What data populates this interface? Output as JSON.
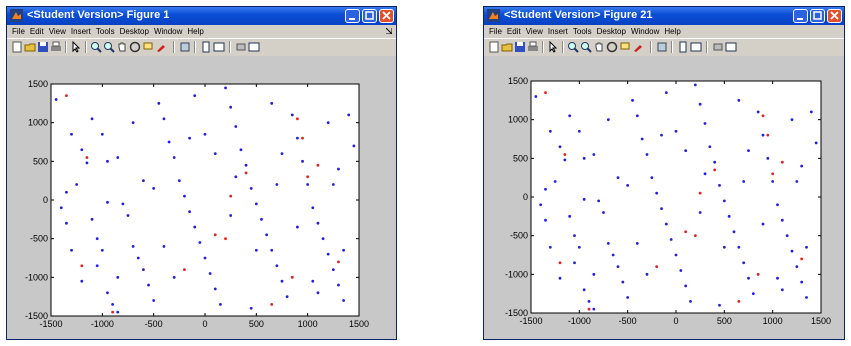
{
  "windows": [
    {
      "title": "<Student Version> Figure 1",
      "menu": [
        "File",
        "Edit",
        "View",
        "Insert",
        "Tools",
        "Desktop",
        "Window",
        "Help"
      ],
      "xticks": [
        -1500,
        -1000,
        -500,
        0,
        500,
        1000,
        1500
      ],
      "yticks": [
        -1500,
        -1000,
        -500,
        0,
        500,
        1000,
        1500
      ],
      "colors": {
        "blue": "#1f1fe6",
        "red": "#e61f1f"
      },
      "chart_data": {
        "type": "scatter",
        "xlim": [
          -1500,
          1500
        ],
        "ylim": [
          -1500,
          1500
        ],
        "series": [
          {
            "color": "blue",
            "points": [
              [
                -1450,
                1300
              ],
              [
                -1300,
                850
              ],
              [
                -1200,
                650
              ],
              [
                -1150,
                480
              ],
              [
                -1100,
                -250
              ],
              [
                -1050,
                -500
              ],
              [
                -1000,
                -650
              ],
              [
                -1050,
                -850
              ],
              [
                -950,
                -1200
              ],
              [
                -900,
                -1350
              ],
              [
                -850,
                -1450
              ],
              [
                -1350,
                100
              ],
              [
                -1250,
                200
              ],
              [
                -1400,
                -100
              ],
              [
                -1200,
                -1050
              ],
              [
                -1100,
                1050
              ],
              [
                -1000,
                850
              ],
              [
                -950,
                500
              ],
              [
                -850,
                550
              ],
              [
                -800,
                -50
              ],
              [
                -750,
                -200
              ],
              [
                -700,
                -600
              ],
              [
                -650,
                -750
              ],
              [
                -600,
                -900
              ],
              [
                -550,
                -1100
              ],
              [
                -500,
                -1300
              ],
              [
                -450,
                1250
              ],
              [
                -400,
                1050
              ],
              [
                -350,
                750
              ],
              [
                -300,
                550
              ],
              [
                -250,
                250
              ],
              [
                -200,
                50
              ],
              [
                -150,
                -150
              ],
              [
                -100,
                -350
              ],
              [
                -50,
                -550
              ],
              [
                0,
                -750
              ],
              [
                50,
                -950
              ],
              [
                100,
                -1150
              ],
              [
                150,
                -1350
              ],
              [
                200,
                1450
              ],
              [
                250,
                1200
              ],
              [
                300,
                950
              ],
              [
                350,
                650
              ],
              [
                400,
                450
              ],
              [
                450,
                150
              ],
              [
                500,
                -50
              ],
              [
                550,
                -250
              ],
              [
                600,
                -450
              ],
              [
                650,
                -650
              ],
              [
                700,
                -850
              ],
              [
                750,
                -1050
              ],
              [
                800,
                -1250
              ],
              [
                850,
                1100
              ],
              [
                900,
                800
              ],
              [
                950,
                500
              ],
              [
                1000,
                200
              ],
              [
                1050,
                -100
              ],
              [
                1100,
                -300
              ],
              [
                1150,
                -500
              ],
              [
                1200,
                -700
              ],
              [
                1250,
                -900
              ],
              [
                1300,
                -1100
              ],
              [
                1350,
                -1300
              ],
              [
                1400,
                1100
              ],
              [
                1450,
                700
              ],
              [
                1300,
                400
              ],
              [
                1200,
                1000
              ],
              [
                -600,
                250
              ],
              [
                -400,
                -600
              ],
              [
                -300,
                -1000
              ],
              [
                0,
                850
              ],
              [
                100,
                600
              ],
              [
                300,
                300
              ],
              [
                500,
                -650
              ],
              [
                700,
                200
              ],
              [
                900,
                -350
              ],
              [
                1100,
                -1200
              ],
              [
                -1300,
                -650
              ],
              [
                -700,
                1000
              ],
              [
                -100,
                1350
              ],
              [
                650,
                1250
              ],
              [
                1350,
                -650
              ],
              [
                -950,
                -30
              ],
              [
                -150,
                800
              ],
              [
                450,
                -1400
              ],
              [
                1050,
                -1050
              ],
              [
                -1350,
                -300
              ],
              [
                -850,
                -1000
              ],
              [
                250,
                -200
              ],
              [
                -500,
                150
              ],
              [
                750,
                600
              ],
              [
                1250,
                200
              ]
            ]
          },
          {
            "color": "red",
            "points": [
              [
                -1350,
                1350
              ],
              [
                -1150,
                550
              ],
              [
                -1200,
                -850
              ],
              [
                -900,
                -1450
              ],
              [
                -200,
                -900
              ],
              [
                250,
                50
              ],
              [
                200,
                -500
              ],
              [
                400,
                350
              ],
              [
                900,
                1050
              ],
              [
                950,
                800
              ],
              [
                1000,
                300
              ],
              [
                1100,
                450
              ],
              [
                850,
                -1000
              ],
              [
                650,
                -1350
              ],
              [
                1300,
                -800
              ],
              [
                100,
                -450
              ]
            ]
          }
        ]
      }
    },
    {
      "title": "<Student Version> Figure 21",
      "menu": [
        "File",
        "Edit",
        "View",
        "Insert",
        "Tools",
        "Desktop",
        "Window",
        "Help"
      ],
      "xticks": [
        -1500,
        -1000,
        -500,
        0,
        500,
        1000,
        1500
      ],
      "yticks": [
        -1500,
        -1000,
        -500,
        0,
        500,
        1000,
        1500
      ],
      "colors": {
        "blue": "#1f1fe6",
        "red": "#e61f1f"
      },
      "chart_data": {
        "type": "scatter",
        "xlim": [
          -1500,
          1500
        ],
        "ylim": [
          -1500,
          1500
        ],
        "series": [
          {
            "color": "blue",
            "points": [
              [
                -1450,
                1300
              ],
              [
                -1300,
                850
              ],
              [
                -1200,
                650
              ],
              [
                -1150,
                480
              ],
              [
                -1100,
                -250
              ],
              [
                -1050,
                -500
              ],
              [
                -1000,
                -650
              ],
              [
                -1050,
                -850
              ],
              [
                -950,
                -1200
              ],
              [
                -900,
                -1350
              ],
              [
                -850,
                -1450
              ],
              [
                -1350,
                100
              ],
              [
                -1250,
                200
              ],
              [
                -1400,
                -100
              ],
              [
                -1200,
                -1050
              ],
              [
                -1100,
                1050
              ],
              [
                -1000,
                850
              ],
              [
                -950,
                500
              ],
              [
                -850,
                550
              ],
              [
                -800,
                -50
              ],
              [
                -750,
                -200
              ],
              [
                -700,
                -600
              ],
              [
                -650,
                -750
              ],
              [
                -600,
                -900
              ],
              [
                -550,
                -1100
              ],
              [
                -500,
                -1300
              ],
              [
                -450,
                1250
              ],
              [
                -400,
                1050
              ],
              [
                -350,
                750
              ],
              [
                -300,
                550
              ],
              [
                -250,
                250
              ],
              [
                -200,
                50
              ],
              [
                -150,
                -150
              ],
              [
                -100,
                -350
              ],
              [
                -50,
                -550
              ],
              [
                0,
                -750
              ],
              [
                50,
                -950
              ],
              [
                100,
                -1150
              ],
              [
                150,
                -1350
              ],
              [
                200,
                1450
              ],
              [
                250,
                1200
              ],
              [
                300,
                950
              ],
              [
                350,
                650
              ],
              [
                400,
                450
              ],
              [
                450,
                150
              ],
              [
                500,
                -50
              ],
              [
                550,
                -250
              ],
              [
                600,
                -450
              ],
              [
                650,
                -650
              ],
              [
                700,
                -850
              ],
              [
                750,
                -1050
              ],
              [
                800,
                -1250
              ],
              [
                850,
                1100
              ],
              [
                900,
                800
              ],
              [
                950,
                500
              ],
              [
                1000,
                200
              ],
              [
                1050,
                -100
              ],
              [
                1100,
                -300
              ],
              [
                1150,
                -500
              ],
              [
                1200,
                -700
              ],
              [
                1250,
                -900
              ],
              [
                1300,
                -1100
              ],
              [
                1350,
                -1300
              ],
              [
                1400,
                1100
              ],
              [
                1450,
                700
              ],
              [
                1300,
                400
              ],
              [
                1200,
                1000
              ],
              [
                -600,
                250
              ],
              [
                -400,
                -600
              ],
              [
                -300,
                -1000
              ],
              [
                0,
                850
              ],
              [
                100,
                600
              ],
              [
                300,
                300
              ],
              [
                500,
                -650
              ],
              [
                700,
                200
              ],
              [
                900,
                -350
              ],
              [
                1100,
                -1200
              ],
              [
                -1300,
                -650
              ],
              [
                -700,
                1000
              ],
              [
                -100,
                1350
              ],
              [
                650,
                1250
              ],
              [
                1350,
                -650
              ],
              [
                -950,
                -30
              ],
              [
                -150,
                800
              ],
              [
                450,
                -1400
              ],
              [
                1050,
                -1050
              ],
              [
                -1350,
                -300
              ],
              [
                -850,
                -1000
              ],
              [
                250,
                -200
              ],
              [
                -500,
                150
              ],
              [
                750,
                600
              ],
              [
                1250,
                200
              ]
            ]
          },
          {
            "color": "red",
            "points": [
              [
                -1350,
                1350
              ],
              [
                -1150,
                550
              ],
              [
                -1200,
                -850
              ],
              [
                -900,
                -1450
              ],
              [
                -200,
                -900
              ],
              [
                250,
                50
              ],
              [
                200,
                -500
              ],
              [
                400,
                350
              ],
              [
                900,
                1050
              ],
              [
                950,
                800
              ],
              [
                1000,
                300
              ],
              [
                1100,
                450
              ],
              [
                850,
                -1000
              ],
              [
                650,
                -1350
              ],
              [
                1300,
                -800
              ],
              [
                100,
                -450
              ]
            ]
          }
        ]
      }
    }
  ]
}
